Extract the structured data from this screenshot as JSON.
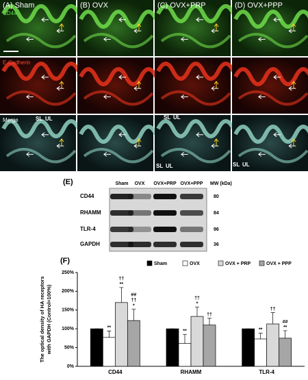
{
  "micrographs": {
    "columns": [
      "(A) Sham",
      "(B) OVX",
      "(C) OVX+PRP",
      "(D) OVX+PPP"
    ],
    "rows": [
      "CD44",
      "E-Cadherin",
      "Merge"
    ],
    "layer_labels": [
      "SL",
      "UL"
    ]
  },
  "blot": {
    "label": "(E)",
    "lanes": [
      "Sham",
      "OVX",
      "OVX+PRP",
      "OVX+PPP"
    ],
    "mw_header": "MW (kDa)",
    "proteins": [
      {
        "name": "CD44",
        "mw": "80"
      },
      {
        "name": "RHAMM",
        "mw": "84"
      },
      {
        "name": "TLR-4",
        "mw": "96"
      },
      {
        "name": "GAPDH",
        "mw": "36"
      }
    ]
  },
  "chart_data": {
    "type": "bar",
    "panel_label": "(F)",
    "ylabel": [
      "The optical density of HA receptors",
      "with GAPDH (Control=100%)"
    ],
    "categories": [
      "CD44",
      "RHAMM",
      "TLR-4"
    ],
    "series": [
      {
        "name": "Sham",
        "color": "#000000",
        "values": [
          100,
          100,
          100
        ],
        "errors": [
          0,
          0,
          0
        ],
        "annotations": [
          null,
          null,
          null
        ]
      },
      {
        "name": "OVX",
        "color": "#ffffff",
        "values": [
          77,
          61,
          73
        ],
        "errors": [
          17,
          24,
          15
        ],
        "annotations": [
          [
            "**"
          ],
          [
            "**"
          ],
          [
            "**"
          ]
        ]
      },
      {
        "name": "OVX + PRP",
        "color": "#d9d9d9",
        "values": [
          170,
          133,
          113
        ],
        "errors": [
          40,
          25,
          30
        ],
        "annotations": [
          [
            "††",
            "**"
          ],
          [
            "††",
            "*"
          ],
          [
            "††"
          ]
        ]
      },
      {
        "name": "OVX + PPP",
        "color": "#a6a6a6",
        "values": [
          122,
          110,
          75
        ],
        "errors": [
          30,
          18,
          20
        ],
        "annotations": [
          [
            "##",
            "††",
            "*"
          ],
          [
            "††"
          ],
          [
            "##",
            "**"
          ]
        ]
      }
    ],
    "ylim": [
      0,
      250
    ],
    "yticks": [
      {
        "value": 0,
        "label": "0%"
      },
      {
        "value": 50,
        "label": "50%"
      },
      {
        "value": 100,
        "label": "100%"
      },
      {
        "value": 150,
        "label": "150%"
      },
      {
        "value": 200,
        "label": "200%"
      },
      {
        "value": 250,
        "label": "250%"
      }
    ]
  }
}
